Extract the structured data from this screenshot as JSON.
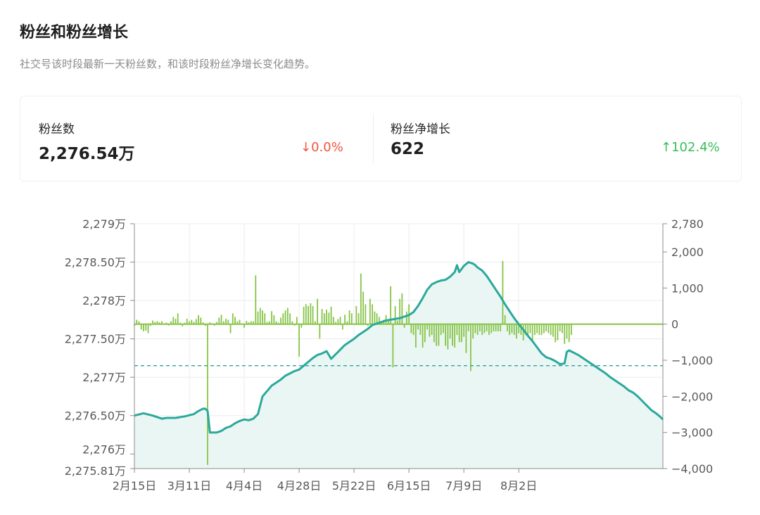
{
  "header": {
    "title": "粉丝和粉丝增长",
    "subtitle": "社交号该时段最新一天粉丝数，和该时段粉丝净增长变化趋势。"
  },
  "metrics": {
    "followers": {
      "label": "粉丝数",
      "value": "2,276.54万",
      "change": "0.0%",
      "arrow": "↓",
      "direction": "down"
    },
    "net_growth": {
      "label": "粉丝净增长",
      "value": "622",
      "change": "102.4%",
      "arrow": "↑",
      "direction": "up"
    }
  },
  "colors": {
    "line": "#2aa99b",
    "area": "#eaf6f4",
    "bar": "#87c447",
    "dashed": "#3aa9a3",
    "grid": "#ececec",
    "axis": "#8c8c8c"
  },
  "chart_data": {
    "type": "line+bar",
    "x_tick_labels": [
      "2月15日",
      "3月11日",
      "4月4日",
      "4月28日",
      "5月22日",
      "6月15日",
      "7月9日",
      "8月2日"
    ],
    "left_axis": {
      "tick_labels": [
        "2,279万",
        "2,278.50万",
        "2,278万",
        "2,277.50万",
        "2,277万",
        "2,276.50万",
        "2,276万",
        "2,275.81万"
      ],
      "ticks": [
        22790000,
        22785000,
        22780000,
        22775000,
        22770000,
        22765000,
        22760000,
        22758100
      ],
      "range": [
        22758100,
        22790000
      ]
    },
    "right_axis": {
      "tick_labels": [
        "2,780",
        "2,000",
        "1,000",
        "0",
        "−1,000",
        "−2,000",
        "−3,000",
        "−4,000"
      ],
      "ticks": [
        2780,
        2000,
        1000,
        0,
        -1000,
        -2000,
        -3000,
        -4000
      ],
      "range": [
        -4000,
        2780
      ]
    },
    "reference_line": {
      "axis": "right",
      "value": -1150
    },
    "series": [
      {
        "kind": "line",
        "axis": "left",
        "points": [
          [
            0,
            22765000
          ],
          [
            4,
            22765300
          ],
          [
            8,
            22765000
          ],
          [
            12,
            22764600
          ],
          [
            14,
            22764700
          ],
          [
            18,
            22764700
          ],
          [
            22,
            22764900
          ],
          [
            26,
            22765200
          ],
          [
            28,
            22765600
          ],
          [
            30,
            22765900
          ],
          [
            31,
            22765900
          ],
          [
            32,
            22765600
          ],
          [
            33,
            22762800
          ],
          [
            36,
            22762800
          ],
          [
            38,
            22763000
          ],
          [
            40,
            22763400
          ],
          [
            42,
            22763600
          ],
          [
            44,
            22764000
          ],
          [
            46,
            22764300
          ],
          [
            48,
            22764500
          ],
          [
            50,
            22764400
          ],
          [
            52,
            22764600
          ],
          [
            54,
            22765200
          ],
          [
            56,
            22767500
          ],
          [
            58,
            22768200
          ],
          [
            60,
            22768900
          ],
          [
            62,
            22769300
          ],
          [
            64,
            22769700
          ],
          [
            66,
            22770200
          ],
          [
            68,
            22770500
          ],
          [
            70,
            22770800
          ],
          [
            72,
            22771000
          ],
          [
            74,
            22771500
          ],
          [
            76,
            22772000
          ],
          [
            78,
            22772500
          ],
          [
            80,
            22772900
          ],
          [
            82,
            22773100
          ],
          [
            84,
            22773400
          ],
          [
            86,
            22772400
          ],
          [
            88,
            22773000
          ],
          [
            90,
            22773600
          ],
          [
            92,
            22774200
          ],
          [
            94,
            22774600
          ],
          [
            96,
            22775000
          ],
          [
            98,
            22775500
          ],
          [
            100,
            22775900
          ],
          [
            102,
            22776300
          ],
          [
            104,
            22776800
          ],
          [
            106,
            22777000
          ],
          [
            108,
            22777200
          ],
          [
            110,
            22777400
          ],
          [
            112,
            22777500
          ],
          [
            114,
            22777600
          ],
          [
            116,
            22777700
          ],
          [
            118,
            22777900
          ],
          [
            120,
            22778100
          ],
          [
            122,
            22778500
          ],
          [
            124,
            22779300
          ],
          [
            126,
            22780300
          ],
          [
            128,
            22781400
          ],
          [
            130,
            22782100
          ],
          [
            132,
            22782400
          ],
          [
            134,
            22782600
          ],
          [
            136,
            22782700
          ],
          [
            138,
            22783100
          ],
          [
            140,
            22783700
          ],
          [
            141,
            22784600
          ],
          [
            142,
            22783700
          ],
          [
            144,
            22784500
          ],
          [
            146,
            22785000
          ],
          [
            148,
            22784800
          ],
          [
            149,
            22784600
          ],
          [
            150,
            22784300
          ],
          [
            152,
            22783900
          ],
          [
            154,
            22783200
          ],
          [
            156,
            22782300
          ],
          [
            158,
            22781400
          ],
          [
            160,
            22780500
          ],
          [
            162,
            22779500
          ],
          [
            164,
            22778600
          ],
          [
            166,
            22777700
          ],
          [
            168,
            22776900
          ],
          [
            170,
            22776200
          ],
          [
            172,
            22775400
          ],
          [
            174,
            22774700
          ],
          [
            176,
            22773900
          ],
          [
            178,
            22773100
          ],
          [
            180,
            22772600
          ],
          [
            182,
            22772400
          ],
          [
            184,
            22772100
          ],
          [
            186,
            22771700
          ],
          [
            188,
            22771800
          ],
          [
            189,
            22773300
          ],
          [
            190,
            22773500
          ],
          [
            192,
            22773200
          ],
          [
            194,
            22772900
          ],
          [
            196,
            22772500
          ],
          [
            198,
            22772100
          ],
          [
            200,
            22771700
          ],
          [
            202,
            22771300
          ],
          [
            204,
            22770900
          ],
          [
            206,
            22770500
          ],
          [
            208,
            22770000
          ],
          [
            210,
            22769600
          ],
          [
            212,
            22769200
          ],
          [
            214,
            22768800
          ],
          [
            216,
            22768300
          ],
          [
            218,
            22768000
          ],
          [
            220,
            22767500
          ],
          [
            222,
            22766900
          ],
          [
            224,
            22766300
          ],
          [
            226,
            22765700
          ],
          [
            228,
            22765300
          ],
          [
            230,
            22764800
          ],
          [
            231,
            22764500
          ]
        ]
      },
      {
        "kind": "bar",
        "axis": "right",
        "values": [
          -50,
          120,
          80,
          -150,
          -200,
          -180,
          -250,
          -50,
          100,
          60,
          80,
          50,
          80,
          20,
          40,
          -40,
          80,
          200,
          150,
          300,
          40,
          -60,
          40,
          150,
          80,
          120,
          60,
          140,
          250,
          180,
          50,
          -50,
          -3900,
          50,
          20,
          -40,
          60,
          180,
          260,
          80,
          150,
          120,
          -250,
          300,
          200,
          80,
          120,
          20,
          -100,
          90,
          50,
          80,
          80,
          1350,
          350,
          450,
          380,
          300,
          60,
          80,
          360,
          250,
          80,
          40,
          180,
          300,
          380,
          450,
          300,
          80,
          -40,
          200,
          -900,
          -100,
          480,
          550,
          500,
          580,
          500,
          80,
          700,
          -400,
          420,
          300,
          400,
          320,
          480,
          200,
          60,
          140,
          200,
          -150,
          260,
          80,
          380,
          300,
          20,
          500,
          300,
          1400,
          900,
          550,
          -50,
          700,
          550,
          350,
          300,
          200,
          80,
          120,
          250,
          100,
          1050,
          -1200,
          500,
          100,
          700,
          850,
          -100,
          350,
          550,
          -250,
          -300,
          -650,
          -150,
          -300,
          -650,
          -500,
          -150,
          -350,
          -300,
          -500,
          -600,
          -600,
          -300,
          -250,
          -600,
          -700,
          -400,
          -600,
          -650,
          -300,
          -500,
          -500,
          -350,
          -800,
          -200,
          -1300,
          -400,
          -250,
          -300,
          -200,
          -300,
          -250,
          -200,
          -300,
          -250,
          -200,
          -200,
          -200,
          -200,
          1750,
          250,
          -200,
          -300,
          -250,
          -300,
          -400,
          -250,
          -300,
          -450,
          -300,
          -350,
          -250,
          -450,
          -300,
          -250,
          -300,
          -300,
          -250,
          -200,
          -250,
          -300,
          -350,
          -500,
          -450,
          -200,
          -250,
          -550,
          -400,
          -500,
          -300
        ]
      }
    ],
    "grid": true,
    "legend": "none"
  }
}
